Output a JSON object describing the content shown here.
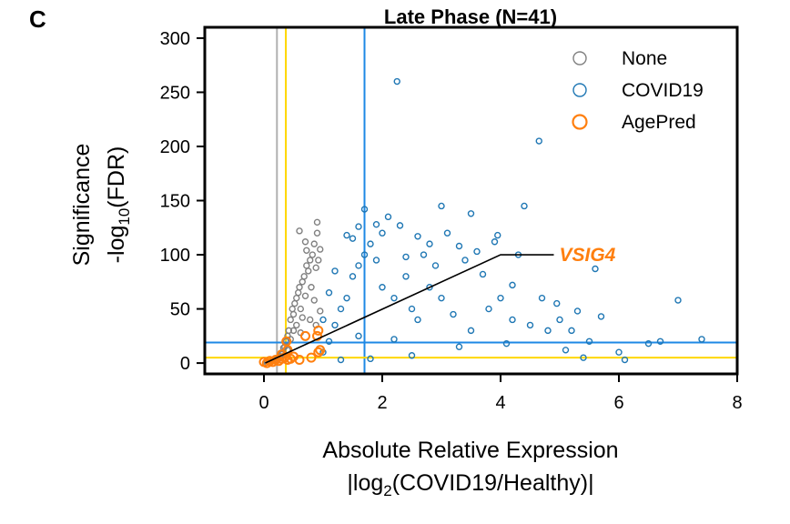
{
  "panel_label": "C",
  "colors": {
    "none": "#808080",
    "covid": "#1f77b4",
    "agepred": "#ff7f0e",
    "vline_gray": "#b0b0b0",
    "threshold_yellow": "#ffd700",
    "threshold_blue": "#1e88e5",
    "annot_line": "#000000"
  },
  "chart_data": {
    "type": "scatter",
    "title": "Late Phase (N=41)",
    "xlabel_line1": "Absolute Relative Expression",
    "xlabel_line2_prefix": "|log",
    "xlabel_line2_sub": "2",
    "xlabel_line2_suffix": "(COVID19/Healthy)|",
    "ylabel_line1": "Significance",
    "ylabel_line2_prefix": "-log",
    "ylabel_line2_sub": "10",
    "ylabel_line2_suffix": "(FDR)",
    "xlim": [
      -1,
      8
    ],
    "ylim": [
      -10,
      310
    ],
    "xticks": [
      0,
      2,
      4,
      6,
      8
    ],
    "yticks": [
      0,
      50,
      100,
      150,
      200,
      250,
      300
    ],
    "grid": false,
    "legend_position": "top-right",
    "legend": [
      "None",
      "COVID19",
      "AgePred"
    ],
    "threshold_lines": {
      "vertical": [
        {
          "x": 0.22,
          "color_key": "vline_gray"
        },
        {
          "x": 0.37,
          "color_key": "threshold_yellow"
        },
        {
          "x": 1.7,
          "color_key": "threshold_blue"
        }
      ],
      "horizontal": [
        {
          "y": 5,
          "color_key": "threshold_yellow"
        },
        {
          "y": 19,
          "color_key": "threshold_blue"
        }
      ]
    },
    "annotation": {
      "text": "VSIG4",
      "point": [
        0.02,
        0
      ],
      "path": [
        [
          0.02,
          0
        ],
        [
          4.0,
          100
        ],
        [
          4.9,
          100
        ]
      ]
    },
    "series": [
      {
        "name": "None",
        "color_key": "none",
        "points": [
          [
            0.05,
            0.5
          ],
          [
            0.1,
            1
          ],
          [
            0.15,
            2
          ],
          [
            0.2,
            3
          ],
          [
            0.25,
            4
          ],
          [
            0.3,
            6
          ],
          [
            0.32,
            10
          ],
          [
            0.35,
            15
          ],
          [
            0.38,
            20
          ],
          [
            0.4,
            25
          ],
          [
            0.42,
            30
          ],
          [
            0.45,
            40
          ],
          [
            0.48,
            50
          ],
          [
            0.5,
            45
          ],
          [
            0.52,
            55
          ],
          [
            0.55,
            60
          ],
          [
            0.55,
            35
          ],
          [
            0.58,
            65
          ],
          [
            0.6,
            70
          ],
          [
            0.62,
            50
          ],
          [
            0.65,
            75
          ],
          [
            0.65,
            42
          ],
          [
            0.68,
            80
          ],
          [
            0.7,
            62
          ],
          [
            0.72,
            90
          ],
          [
            0.75,
            85
          ],
          [
            0.78,
            95
          ],
          [
            0.8,
            70
          ],
          [
            0.82,
            100
          ],
          [
            0.85,
            58
          ],
          [
            0.85,
            110
          ],
          [
            0.88,
            88
          ],
          [
            0.9,
            120
          ],
          [
            0.92,
            95
          ],
          [
            0.95,
            105
          ],
          [
            0.6,
            122
          ],
          [
            0.7,
            112
          ],
          [
            0.9,
            130
          ],
          [
            0.72,
            104
          ],
          [
            0.5,
            30
          ],
          [
            0.45,
            22
          ],
          [
            0.4,
            12
          ],
          [
            0.3,
            8
          ],
          [
            0.62,
            28
          ],
          [
            0.78,
            40
          ],
          [
            0.88,
            35
          ],
          [
            0.95,
            48
          ],
          [
            0.28,
            5
          ],
          [
            0.33,
            14
          ]
        ]
      },
      {
        "name": "COVID19",
        "color_key": "covid",
        "points": [
          [
            1.0,
            10
          ],
          [
            1.1,
            20
          ],
          [
            1.2,
            35
          ],
          [
            1.3,
            50
          ],
          [
            1.4,
            60
          ],
          [
            1.5,
            80
          ],
          [
            1.6,
            90
          ],
          [
            1.7,
            100
          ],
          [
            1.8,
            110
          ],
          [
            1.9,
            95
          ],
          [
            2.0,
            70
          ],
          [
            2.2,
            60
          ],
          [
            2.4,
            80
          ],
          [
            2.5,
            50
          ],
          [
            2.6,
            40
          ],
          [
            2.8,
            70
          ],
          [
            3.0,
            60
          ],
          [
            3.2,
            45
          ],
          [
            3.5,
            30
          ],
          [
            3.8,
            50
          ],
          [
            4.0,
            60
          ],
          [
            4.2,
            40
          ],
          [
            4.5,
            35
          ],
          [
            4.8,
            30
          ],
          [
            5.0,
            40
          ],
          [
            5.2,
            30
          ],
          [
            5.5,
            20
          ],
          [
            6.0,
            10
          ],
          [
            6.5,
            18
          ],
          [
            7.0,
            58
          ],
          [
            7.4,
            22
          ],
          [
            2.25,
            260
          ],
          [
            4.65,
            205
          ],
          [
            3.0,
            145
          ],
          [
            3.5,
            138
          ],
          [
            4.4,
            145
          ],
          [
            1.7,
            142
          ],
          [
            2.1,
            135
          ],
          [
            2.8,
            110
          ],
          [
            2.0,
            120
          ],
          [
            2.7,
            100
          ],
          [
            3.3,
            108
          ],
          [
            3.6,
            103
          ],
          [
            3.9,
            112
          ],
          [
            4.3,
            100
          ],
          [
            5.6,
            87
          ],
          [
            1.4,
            118
          ],
          [
            1.6,
            126
          ],
          [
            2.3,
            127
          ],
          [
            3.1,
            120
          ],
          [
            3.95,
            118
          ],
          [
            1.2,
            85
          ],
          [
            1.5,
            115
          ],
          [
            1.9,
            128
          ],
          [
            2.6,
            117
          ],
          [
            3.4,
            95
          ],
          [
            2.9,
            90
          ],
          [
            1.6,
            25
          ],
          [
            2.2,
            22
          ],
          [
            3.3,
            15
          ],
          [
            4.1,
            18
          ],
          [
            5.1,
            12
          ],
          [
            5.4,
            5
          ],
          [
            6.1,
            3
          ],
          [
            6.7,
            20
          ],
          [
            5.7,
            43
          ],
          [
            4.7,
            60
          ],
          [
            4.2,
            72
          ],
          [
            5.3,
            48
          ],
          [
            3.7,
            82
          ],
          [
            1.3,
            3
          ],
          [
            1.8,
            4
          ],
          [
            2.5,
            7
          ],
          [
            1.1,
            65
          ],
          [
            1.0,
            40
          ],
          [
            2.4,
            98
          ],
          [
            4.95,
            55
          ]
        ]
      },
      {
        "name": "AgePred",
        "color_key": "agepred",
        "points": [
          [
            0.0,
            1
          ],
          [
            0.05,
            0
          ],
          [
            0.1,
            2
          ],
          [
            0.15,
            1
          ],
          [
            0.2,
            3
          ],
          [
            0.25,
            2
          ],
          [
            0.3,
            4
          ],
          [
            0.35,
            5
          ],
          [
            0.4,
            3
          ],
          [
            0.45,
            4
          ],
          [
            0.5,
            6
          ],
          [
            0.3,
            8
          ],
          [
            0.4,
            12
          ],
          [
            0.38,
            20
          ],
          [
            0.7,
            25
          ],
          [
            0.92,
            30
          ],
          [
            0.9,
            25
          ],
          [
            0.8,
            5
          ],
          [
            0.95,
            12
          ],
          [
            0.92,
            10
          ],
          [
            0.6,
            3
          ]
        ]
      }
    ]
  }
}
